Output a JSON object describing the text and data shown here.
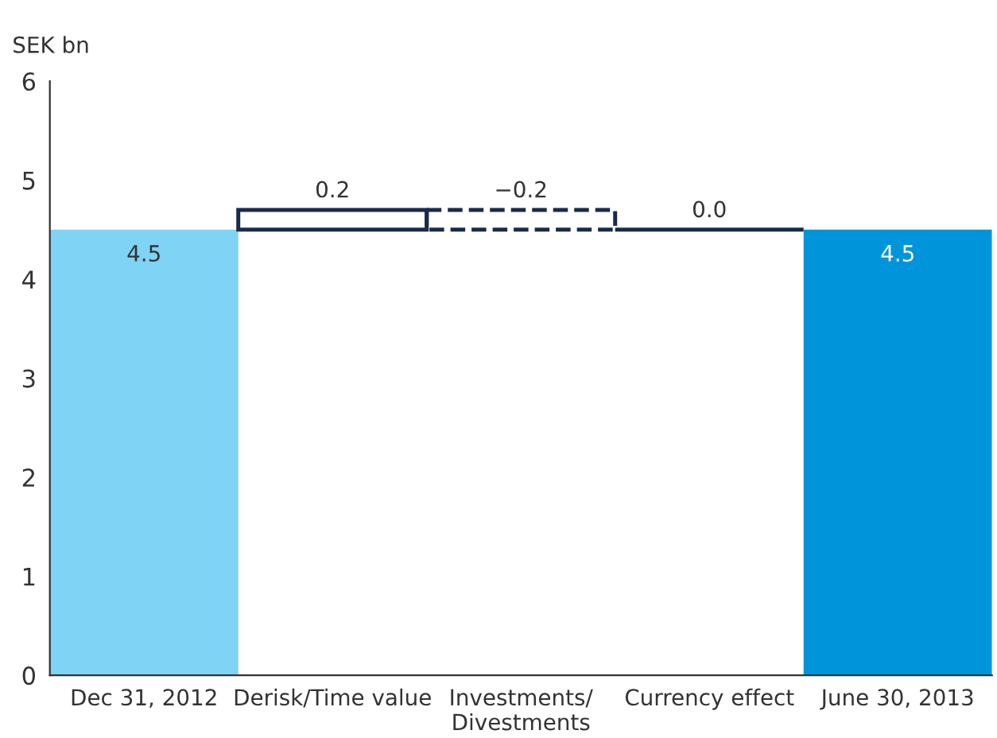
{
  "chart_data": {
    "type": "bar",
    "ylabel": "SEK bn",
    "categories": [
      "Dec 31, 2012",
      "Derisk/Time value",
      "Investments/\nDivestments",
      "Currency effect",
      "June 30, 2013"
    ],
    "values": [
      4.5,
      0.2,
      -0.2,
      0.0,
      4.5
    ],
    "base": [
      0,
      4.5,
      4.7,
      4.5,
      0
    ],
    "colors": [
      "#7fd3f5",
      "#1a2a4a",
      "#1a2a4a",
      "#1a2a4a",
      "#0095da"
    ],
    "value_labels": [
      "4.5",
      "0.2",
      "−0.2",
      "0.0",
      "4.5"
    ],
    "ylim": [
      0,
      6
    ],
    "yticks": [
      0,
      1,
      2,
      3,
      4,
      5,
      6
    ],
    "grid": false,
    "legend": false
  }
}
